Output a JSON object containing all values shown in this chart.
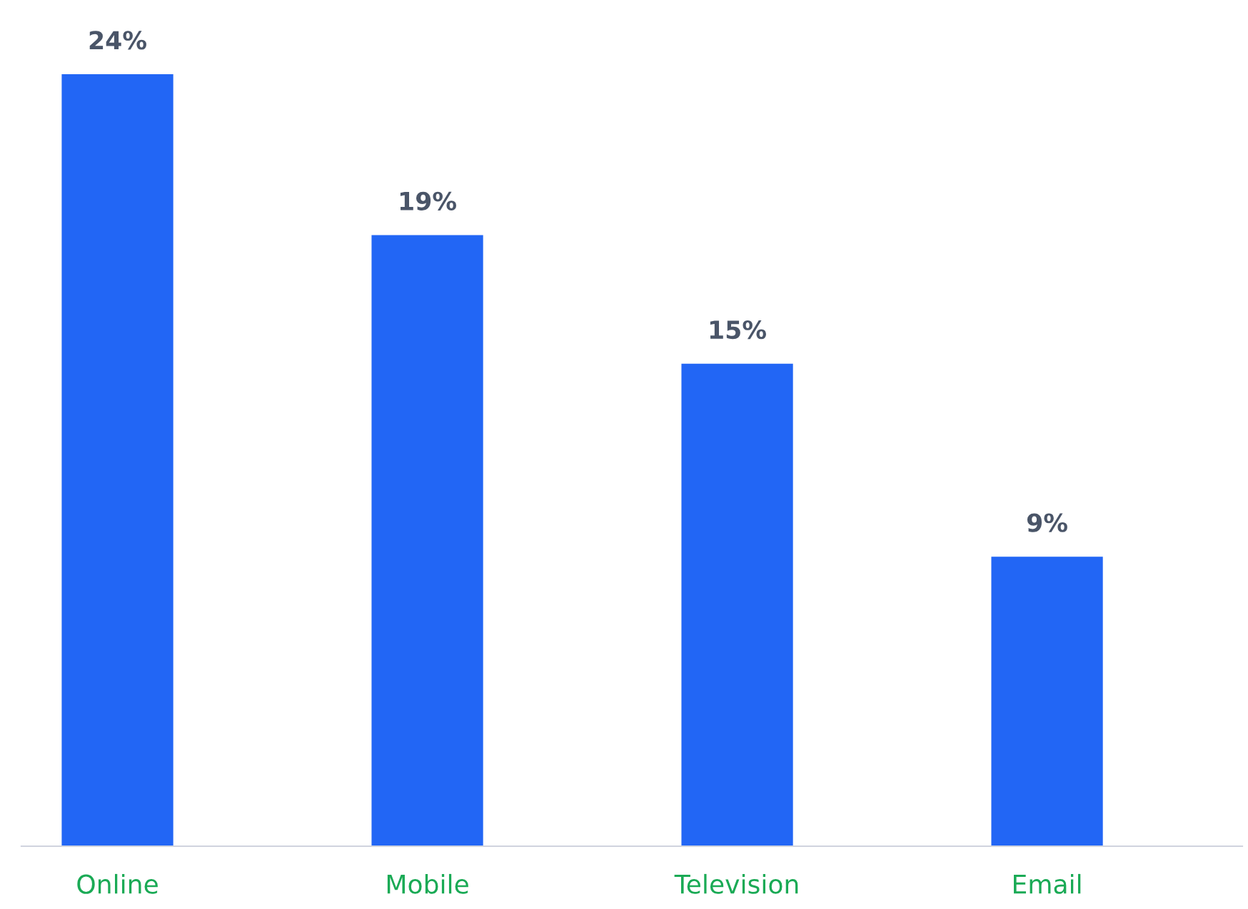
{
  "chart_data": {
    "type": "bar",
    "categories": [
      "Online",
      "Mobile",
      "Television",
      "Email"
    ],
    "values": [
      24,
      19,
      15,
      9
    ],
    "value_labels": [
      "24%",
      "19%",
      "15%",
      "9%"
    ],
    "color": "#2266f5",
    "grid": false,
    "legend": false
  }
}
